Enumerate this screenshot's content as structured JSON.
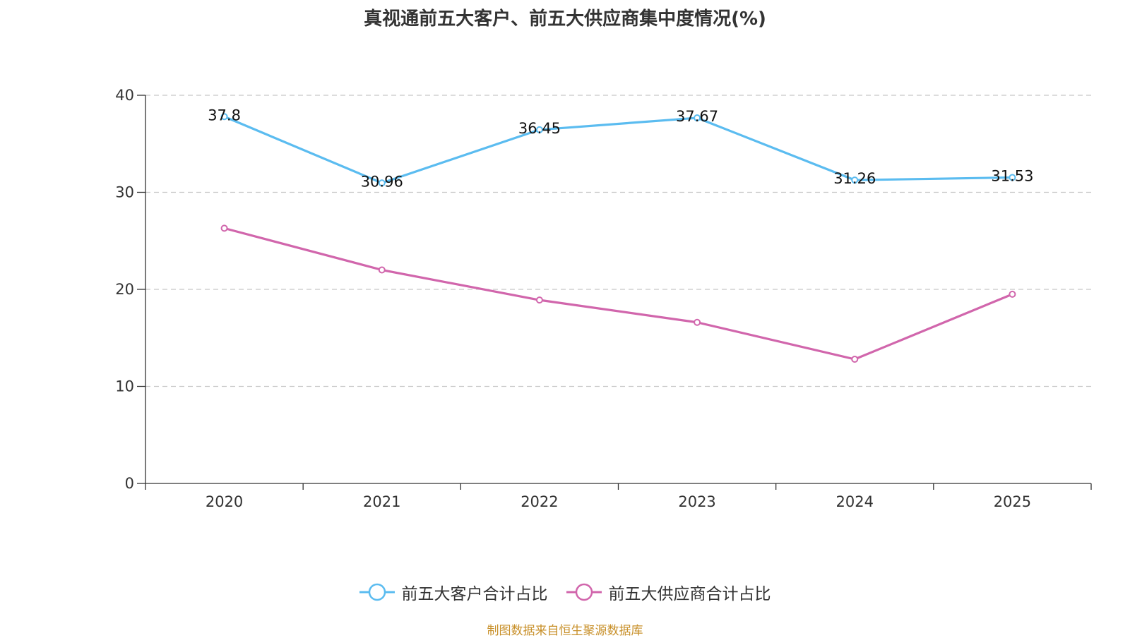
{
  "chart_data": {
    "type": "line",
    "title": "真视通前五大客户、前五大供应商集中度情况(%)",
    "categories": [
      "2020",
      "2021",
      "2022",
      "2023",
      "2024",
      "2025"
    ],
    "ylim": [
      0,
      40
    ],
    "yticks": [
      0,
      10,
      20,
      30,
      40
    ],
    "grid": true,
    "legend_position": "bottom",
    "series": [
      {
        "name": "前五大客户合计占比",
        "color": "#5bbcf0",
        "values": [
          37.8,
          30.96,
          36.45,
          37.67,
          31.26,
          31.53
        ],
        "show_labels": true,
        "labels": [
          "37.8",
          "30.96",
          "36.45",
          "37.67",
          "31.26",
          "31.53"
        ]
      },
      {
        "name": "前五大供应商合计占比",
        "color": "#d166ac",
        "values": [
          26.3,
          22.0,
          18.9,
          16.6,
          12.8,
          19.5
        ],
        "show_labels": false
      }
    ]
  },
  "source_note": "制图数据来自恒生聚源数据库"
}
